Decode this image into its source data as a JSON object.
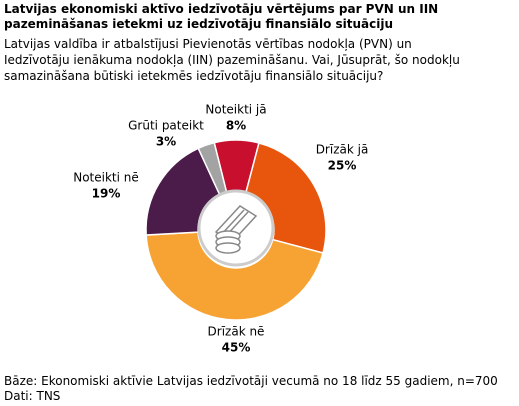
{
  "chart_data": {
    "type": "donut",
    "title": "Latvijas ekonomiski aktīvo iedzīvotāju vērtējums par PVN un IIN pazemināšanas ietekmi uz iedzīvotāju finansiālo situāciju",
    "subtitle": "Latvijas valdība ir atbalstījusi Pievienotās vērtības nodokļa (PVN) un Iedzīvotāju ienākuma nodokļa (IIN) pazemināšanu. Vai, Jūsuprāt, šo nodokļu samazināšana būtiski ietekmēs iedzīvotāju finansiālo situāciju?",
    "categories": [
      "Noteikti jā",
      "Drīzāk jā",
      "Drīzāk nē",
      "Noteikti nē",
      "Grūti pateikt"
    ],
    "values": [
      8,
      25,
      45,
      19,
      3
    ],
    "value_labels": [
      "8%",
      "25%",
      "45%",
      "19%",
      "3%"
    ],
    "colors": [
      "#c8102e",
      "#e8560e",
      "#f7a334",
      "#4b1b4a",
      "#a3a3a3"
    ],
    "notes": [
      "Bāze: Ekonomiski aktīvie Latvijas iedzīvotāji vecumā no 18 līdz 55 gadiem, n=700",
      "Dati: TNS"
    ]
  }
}
